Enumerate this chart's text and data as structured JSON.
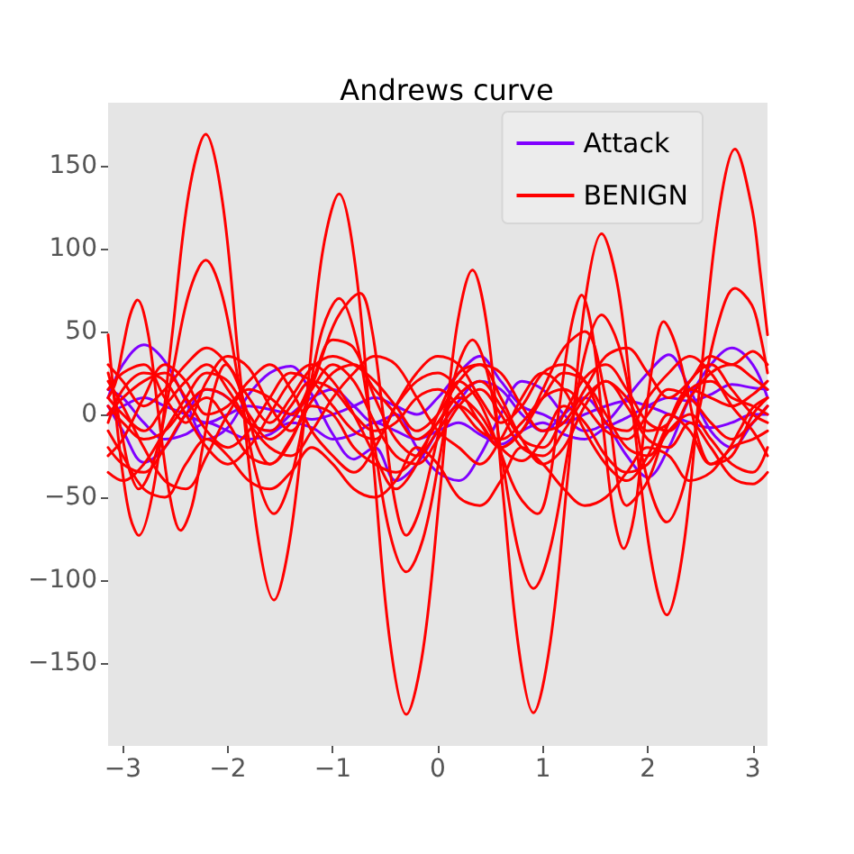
{
  "chart_data": {
    "type": "line",
    "title": "Andrews curve",
    "x": [
      -3.14,
      -3.0,
      -2.8,
      -2.6,
      -2.4,
      -2.2,
      -2.0,
      -1.8,
      -1.6,
      -1.4,
      -1.2,
      -1.0,
      -0.8,
      -0.6,
      -0.4,
      -0.2,
      0,
      0.2,
      0.4,
      0.6,
      0.8,
      1.0,
      1.2,
      1.4,
      1.6,
      1.8,
      2.0,
      2.2,
      2.4,
      2.6,
      2.8,
      3.0,
      3.14
    ],
    "xlim": [
      -3.14,
      3.14
    ],
    "ylim": [
      -200,
      188
    ],
    "xticks": [
      {
        "value": -3,
        "label": "−3"
      },
      {
        "value": -2,
        "label": "−2"
      },
      {
        "value": -1,
        "label": "−1"
      },
      0,
      1,
      2,
      3
    ],
    "yticks": [
      {
        "value": -150,
        "label": "−150"
      },
      {
        "value": -100,
        "label": "−100"
      },
      {
        "value": -50,
        "label": "−50"
      },
      0,
      50,
      100,
      150
    ],
    "legend": "top right",
    "marker": "none",
    "series": [
      {
        "name": "Attack",
        "color": "#8000ff",
        "values": [
          10,
          30,
          42,
          32,
          8,
          -15,
          -8,
          12,
          25,
          29,
          12,
          -12,
          -27,
          -20,
          -40,
          -30,
          -10,
          8,
          20,
          15,
          0,
          -10,
          0,
          10,
          -5,
          -25,
          -38,
          -20,
          10,
          30,
          40,
          30,
          10
        ]
      },
      {
        "color": "#8000ff",
        "values": [
          5,
          -10,
          -29,
          -20,
          0,
          15,
          10,
          -5,
          -10,
          0,
          10,
          15,
          5,
          -5,
          0,
          -20,
          -35,
          -40,
          -25,
          0,
          20,
          15,
          0,
          -10,
          -5,
          10,
          25,
          36,
          15,
          -10,
          -20,
          -5,
          5
        ]
      },
      {
        "color": "#8000ff",
        "values": [
          0,
          5,
          10,
          5,
          0,
          -5,
          0,
          5,
          3,
          0,
          -3,
          0,
          5,
          10,
          5,
          0,
          10,
          25,
          35,
          20,
          5,
          0,
          -5,
          0,
          5,
          8,
          5,
          0,
          -5,
          -8,
          -5,
          0,
          0
        ]
      },
      {
        "color": "#8000ff",
        "values": [
          15,
          10,
          -5,
          -15,
          -12,
          -5,
          -10,
          -15,
          -12,
          -5,
          -8,
          -15,
          -12,
          -5,
          -10,
          -15,
          -10,
          -5,
          -12,
          -18,
          -10,
          -5,
          -12,
          -15,
          -8,
          -2,
          5,
          10,
          8,
          12,
          18,
          16,
          15
        ]
      },
      {
        "name": "BENIGN",
        "color": "#ff0000",
        "values": [
          15,
          25,
          30,
          10,
          -5,
          20,
          35,
          28,
          5,
          -10,
          8,
          25,
          30,
          15,
          0,
          -15,
          -5,
          12,
          20,
          5,
          -15,
          -20,
          0,
          22,
          30,
          15,
          -5,
          -10,
          10,
          25,
          30,
          22,
          15
        ]
      },
      {
        "color": "#ff0000",
        "values": [
          -20,
          -30,
          -35,
          -20,
          0,
          10,
          -5,
          -25,
          -30,
          -15,
          5,
          0,
          -20,
          -30,
          -35,
          -25,
          -5,
          10,
          0,
          -20,
          -28,
          -15,
          5,
          -5,
          -25,
          -35,
          -30,
          -10,
          0,
          -15,
          -30,
          -35,
          -20
        ]
      },
      {
        "color": "#ff0000",
        "values": [
          5,
          -5,
          -15,
          -10,
          5,
          15,
          10,
          -5,
          -10,
          5,
          20,
          15,
          0,
          -10,
          -5,
          10,
          15,
          5,
          -10,
          -15,
          -5,
          10,
          15,
          5,
          -10,
          -15,
          0,
          15,
          10,
          -5,
          -15,
          -5,
          5
        ]
      },
      {
        "color": "#ff0000",
        "values": [
          -35,
          -40,
          -30,
          -10,
          10,
          25,
          20,
          0,
          -15,
          -5,
          15,
          30,
          20,
          -5,
          -25,
          -30,
          -15,
          5,
          15,
          0,
          -20,
          -25,
          -10,
          10,
          20,
          5,
          -15,
          -20,
          -5,
          -20,
          -38,
          -42,
          -35
        ]
      },
      {
        "color": "#ff0000",
        "values": [
          30,
          20,
          5,
          15,
          30,
          40,
          30,
          10,
          -5,
          10,
          28,
          35,
          30,
          20,
          5,
          -10,
          0,
          20,
          30,
          25,
          5,
          -10,
          -5,
          15,
          35,
          40,
          25,
          10,
          20,
          35,
          30,
          38,
          30
        ]
      },
      {
        "color": "#ff0000",
        "values": [
          0,
          10,
          20,
          25,
          10,
          -10,
          -20,
          -10,
          10,
          25,
          20,
          5,
          -10,
          -15,
          5,
          20,
          25,
          15,
          -5,
          -20,
          -10,
          10,
          25,
          20,
          0,
          -20,
          -25,
          -5,
          15,
          20,
          10,
          5,
          0
        ]
      },
      {
        "color": "#ff0000",
        "values": [
          -10,
          -25,
          -45,
          -50,
          -30,
          -15,
          -25,
          -40,
          -45,
          -35,
          -20,
          -30,
          -45,
          -50,
          -40,
          -20,
          -30,
          -50,
          -55,
          -40,
          -20,
          -30,
          -45,
          -55,
          -50,
          -35,
          -20,
          -25,
          -40,
          -35,
          -20,
          -15,
          -10
        ]
      },
      {
        "color": "#ff0000",
        "values": [
          20,
          5,
          -20,
          -40,
          -45,
          -25,
          0,
          15,
          10,
          0,
          20,
          45,
          40,
          10,
          -15,
          -25,
          -10,
          5,
          -5,
          -20,
          -10,
          15,
          40,
          50,
          10,
          -55,
          -40,
          -5,
          15,
          10,
          5,
          12,
          20
        ]
      },
      {
        "color": "#ff0000",
        "values": [
          -5,
          15,
          25,
          20,
          0,
          -20,
          -30,
          -20,
          0,
          20,
          30,
          20,
          0,
          -25,
          -45,
          -30,
          0,
          25,
          30,
          10,
          -15,
          -30,
          -20,
          5,
          20,
          10,
          -10,
          -5,
          20,
          30,
          15,
          0,
          -5
        ]
      },
      {
        "color": "#ff0000",
        "values": [
          10,
          0,
          -10,
          5,
          20,
          30,
          15,
          -5,
          -20,
          -25,
          -10,
          10,
          25,
          35,
          30,
          10,
          -10,
          -20,
          -30,
          -15,
          10,
          25,
          15,
          -10,
          -30,
          -40,
          -25,
          0,
          -10,
          -30,
          -25,
          0,
          10
        ]
      },
      {
        "color": "#ff0000",
        "values": [
          -25,
          -15,
          10,
          30,
          20,
          0,
          5,
          20,
          30,
          15,
          -10,
          -25,
          -35,
          -20,
          5,
          25,
          35,
          30,
          10,
          -5,
          5,
          25,
          30,
          20,
          -5,
          -10,
          10,
          25,
          35,
          25,
          5,
          -10,
          -25
        ]
      },
      {
        "color": "#ff0000",
        "x": [
          -3.14,
          -3.07,
          -3.0,
          -2.93,
          -2.86,
          -2.76,
          -2.66,
          -2.55,
          -2.45,
          -2.34,
          -2.24,
          -2.13,
          -2.02,
          -1.92,
          -1.81,
          -1.71,
          -1.6,
          -1.39,
          -1.17,
          -0.96,
          -0.74,
          -0.63,
          -0.52,
          -0.41,
          -0.3,
          -0.18,
          -0.05,
          0.08,
          0.2,
          0.39,
          0.58,
          0.76,
          0.95,
          1.06,
          1.16,
          1.27,
          1.37,
          1.47,
          1.57,
          1.67,
          1.77,
          1.87,
          1.96,
          2.06,
          2.15,
          2.26,
          2.38,
          2.49,
          2.6,
          2.74,
          2.87,
          3.0,
          3.14
        ],
        "values": [
          10,
          19,
          40,
          60,
          69,
          49,
          0,
          -50,
          -70,
          -55,
          -20,
          15,
          30,
          21,
          0,
          -21,
          -30,
          -15,
          22,
          58,
          73,
          52,
          0,
          -52,
          -73,
          -59,
          -27,
          6,
          20,
          8,
          -20,
          -48,
          -60,
          -41,
          6,
          53,
          72,
          50,
          -5,
          -59,
          -81,
          -61,
          -12,
          36,
          56,
          43,
          13,
          -17,
          -30,
          -24,
          -10,
          4,
          10
        ]
      },
      {
        "color": "#ff0000",
        "x": [
          -3.14,
          -3.07,
          -3.0,
          -2.93,
          -2.85,
          -2.69,
          -2.53,
          -2.37,
          -2.21,
          -2.05,
          -1.89,
          -1.72,
          -1.56,
          -1.41,
          -1.25,
          -1.1,
          -0.94,
          -0.78,
          -0.62,
          -0.46,
          -0.3,
          -0.14,
          0.02,
          0.17,
          0.33,
          0.48,
          0.62,
          0.77,
          0.91,
          1.07,
          1.24,
          1.4,
          1.56,
          1.72,
          1.87,
          2.03,
          2.18,
          2.34,
          2.5,
          2.67,
          2.83,
          2.99,
          3.07,
          3.14
        ],
        "values": [
          25,
          8,
          -15,
          -35,
          -45,
          -25,
          24,
          73,
          93,
          71,
          17,
          -38,
          -60,
          -41,
          5,
          51,
          70,
          46,
          -12,
          -71,
          -95,
          -75,
          -25,
          25,
          45,
          23,
          -30,
          -83,
          -105,
          -81,
          -22,
          36,
          60,
          42,
          -2,
          -47,
          -65,
          -44,
          6,
          55,
          76,
          66,
          48,
          25
        ]
      },
      {
        "color": "#ff0000",
        "x": [
          -3.14,
          -3.07,
          -3.0,
          -2.93,
          -2.85,
          -2.69,
          -2.53,
          -2.37,
          -2.21,
          -2.05,
          -1.89,
          -1.72,
          -1.56,
          -1.41,
          -1.25,
          -1.1,
          -0.94,
          -0.78,
          -0.62,
          -0.46,
          -0.3,
          -0.14,
          0.02,
          0.17,
          0.33,
          0.48,
          0.62,
          0.77,
          0.91,
          1.07,
          1.24,
          1.4,
          1.56,
          1.72,
          1.87,
          2.03,
          2.18,
          2.34,
          2.5,
          2.67,
          2.83,
          2.99,
          3.07,
          3.14
        ],
        "values": [
          48,
          2,
          -36,
          -62,
          -73,
          -38,
          48,
          134,
          169,
          128,
          28,
          -71,
          -112,
          -76,
          10,
          97,
          133,
          87,
          -24,
          -135,
          -181,
          -142,
          -47,
          48,
          87,
          48,
          -47,
          -141,
          -180,
          -138,
          -36,
          67,
          109,
          75,
          -6,
          -87,
          -121,
          -80,
          20,
          119,
          160,
          125,
          86,
          48
        ]
      }
    ]
  }
}
